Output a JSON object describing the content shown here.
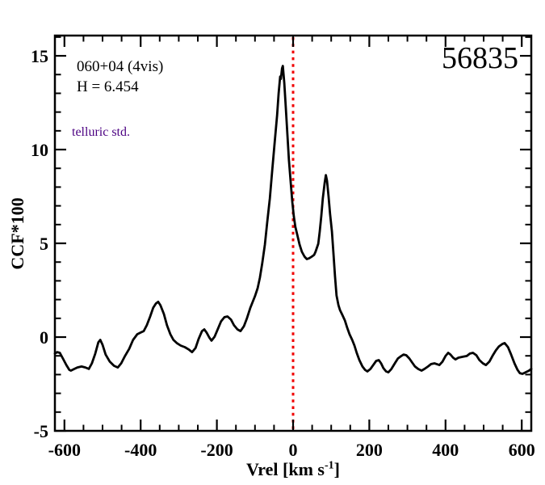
{
  "annotations": {
    "field": "060+04 (4vis)",
    "h_mag": "H = 6.454",
    "telluric": "telluric std.",
    "telluric_color": "#4b0082",
    "mjd": "56835"
  },
  "axes": {
    "xlabel_prefix": "Vrel [km s",
    "xlabel_sup": "-1",
    "xlabel_suffix": "]",
    "ylabel": "CCF*100"
  },
  "chart_data": {
    "type": "line",
    "title": "",
    "xlabel": "Vrel [km s^-1]",
    "ylabel": "CCF*100",
    "xlim": [
      -625,
      625
    ],
    "ylim": [
      -5,
      16.08
    ],
    "xticks_major": [
      -600,
      -400,
      -200,
      0,
      200,
      400,
      600
    ],
    "xtick_minor_step": 50,
    "yticks_major": [
      -5,
      0,
      5,
      10,
      15
    ],
    "ytick_minor_step": 1,
    "grid": false,
    "frame_color": "#000000",
    "line_color": "#000000",
    "vline": {
      "x": 0,
      "color": "#f00000",
      "style": "dotted"
    },
    "series": [
      {
        "name": "CCF",
        "points": [
          [
            -625,
            -0.88
          ],
          [
            -619,
            -0.8
          ],
          [
            -612,
            -0.84
          ],
          [
            -604,
            -1.14
          ],
          [
            -595,
            -1.49
          ],
          [
            -587,
            -1.75
          ],
          [
            -583,
            -1.79
          ],
          [
            -574,
            -1.7
          ],
          [
            -566,
            -1.62
          ],
          [
            -555,
            -1.57
          ],
          [
            -545,
            -1.62
          ],
          [
            -536,
            -1.7
          ],
          [
            -528,
            -1.4
          ],
          [
            -519,
            -0.88
          ],
          [
            -511,
            -0.28
          ],
          [
            -506,
            -0.15
          ],
          [
            -500,
            -0.41
          ],
          [
            -492,
            -0.93
          ],
          [
            -481,
            -1.31
          ],
          [
            -470,
            -1.53
          ],
          [
            -460,
            -1.62
          ],
          [
            -451,
            -1.4
          ],
          [
            -441,
            -1.01
          ],
          [
            -430,
            -0.63
          ],
          [
            -420,
            -0.15
          ],
          [
            -409,
            0.15
          ],
          [
            -400,
            0.24
          ],
          [
            -392,
            0.32
          ],
          [
            -384,
            0.63
          ],
          [
            -375,
            1.1
          ],
          [
            -367,
            1.57
          ],
          [
            -360,
            1.79
          ],
          [
            -354,
            1.88
          ],
          [
            -348,
            1.7
          ],
          [
            -339,
            1.23
          ],
          [
            -331,
            0.63
          ],
          [
            -322,
            0.15
          ],
          [
            -314,
            -0.15
          ],
          [
            -305,
            -0.32
          ],
          [
            -295,
            -0.45
          ],
          [
            -284,
            -0.54
          ],
          [
            -273,
            -0.67
          ],
          [
            -265,
            -0.8
          ],
          [
            -256,
            -0.58
          ],
          [
            -248,
            -0.11
          ],
          [
            -239,
            0.32
          ],
          [
            -233,
            0.41
          ],
          [
            -227,
            0.24
          ],
          [
            -220,
            -0.02
          ],
          [
            -214,
            -0.19
          ],
          [
            -206,
            0.02
          ],
          [
            -197,
            0.45
          ],
          [
            -189,
            0.84
          ],
          [
            -180,
            1.06
          ],
          [
            -172,
            1.1
          ],
          [
            -163,
            0.93
          ],
          [
            -155,
            0.63
          ],
          [
            -146,
            0.41
          ],
          [
            -138,
            0.32
          ],
          [
            -129,
            0.58
          ],
          [
            -121,
            1.01
          ],
          [
            -112,
            1.57
          ],
          [
            -106,
            1.88
          ],
          [
            -100,
            2.18
          ],
          [
            -93,
            2.61
          ],
          [
            -87,
            3.17
          ],
          [
            -81,
            3.94
          ],
          [
            -74,
            4.94
          ],
          [
            -68,
            6.1
          ],
          [
            -61,
            7.39
          ],
          [
            -55,
            8.81
          ],
          [
            -49,
            10.24
          ],
          [
            -42,
            11.83
          ],
          [
            -38,
            13.0
          ],
          [
            -34,
            13.9
          ],
          [
            -32,
            13.77
          ],
          [
            -29,
            14.33
          ],
          [
            -27,
            14.46
          ],
          [
            -23,
            13.56
          ],
          [
            -19,
            12.22
          ],
          [
            -15,
            10.84
          ],
          [
            -11,
            9.46
          ],
          [
            -6,
            8.17
          ],
          [
            -2,
            7.18
          ],
          [
            2,
            6.44
          ],
          [
            6,
            5.88
          ],
          [
            11,
            5.45
          ],
          [
            17,
            4.94
          ],
          [
            23,
            4.55
          ],
          [
            30,
            4.29
          ],
          [
            36,
            4.16
          ],
          [
            42,
            4.2
          ],
          [
            49,
            4.29
          ],
          [
            55,
            4.38
          ],
          [
            59,
            4.55
          ],
          [
            66,
            4.98
          ],
          [
            70,
            5.63
          ],
          [
            74,
            6.44
          ],
          [
            78,
            7.39
          ],
          [
            83,
            8.25
          ],
          [
            86,
            8.64
          ],
          [
            89,
            8.34
          ],
          [
            93,
            7.52
          ],
          [
            97,
            6.57
          ],
          [
            102,
            5.63
          ],
          [
            106,
            4.46
          ],
          [
            110,
            3.25
          ],
          [
            114,
            2.22
          ],
          [
            119,
            1.7
          ],
          [
            123,
            1.44
          ],
          [
            129,
            1.19
          ],
          [
            136,
            0.88
          ],
          [
            142,
            0.5
          ],
          [
            148,
            0.15
          ],
          [
            155,
            -0.15
          ],
          [
            161,
            -0.45
          ],
          [
            167,
            -0.84
          ],
          [
            174,
            -1.23
          ],
          [
            182,
            -1.57
          ],
          [
            189,
            -1.75
          ],
          [
            195,
            -1.83
          ],
          [
            203,
            -1.7
          ],
          [
            212,
            -1.44
          ],
          [
            218,
            -1.27
          ],
          [
            225,
            -1.23
          ],
          [
            231,
            -1.4
          ],
          [
            237,
            -1.66
          ],
          [
            244,
            -1.83
          ],
          [
            250,
            -1.88
          ],
          [
            258,
            -1.7
          ],
          [
            267,
            -1.4
          ],
          [
            275,
            -1.14
          ],
          [
            284,
            -1.01
          ],
          [
            290,
            -0.93
          ],
          [
            297,
            -0.97
          ],
          [
            305,
            -1.14
          ],
          [
            314,
            -1.4
          ],
          [
            320,
            -1.57
          ],
          [
            328,
            -1.7
          ],
          [
            337,
            -1.79
          ],
          [
            345,
            -1.7
          ],
          [
            354,
            -1.57
          ],
          [
            362,
            -1.44
          ],
          [
            371,
            -1.4
          ],
          [
            377,
            -1.44
          ],
          [
            384,
            -1.49
          ],
          [
            392,
            -1.31
          ],
          [
            400,
            -1.01
          ],
          [
            407,
            -0.84
          ],
          [
            413,
            -0.93
          ],
          [
            420,
            -1.1
          ],
          [
            426,
            -1.19
          ],
          [
            434,
            -1.1
          ],
          [
            445,
            -1.05
          ],
          [
            456,
            -1.01
          ],
          [
            464,
            -0.88
          ],
          [
            472,
            -0.84
          ],
          [
            481,
            -0.97
          ],
          [
            489,
            -1.23
          ],
          [
            498,
            -1.4
          ],
          [
            506,
            -1.49
          ],
          [
            515,
            -1.31
          ],
          [
            523,
            -1.01
          ],
          [
            532,
            -0.71
          ],
          [
            540,
            -0.5
          ],
          [
            549,
            -0.37
          ],
          [
            555,
            -0.32
          ],
          [
            564,
            -0.54
          ],
          [
            572,
            -0.93
          ],
          [
            581,
            -1.4
          ],
          [
            589,
            -1.75
          ],
          [
            595,
            -1.92
          ],
          [
            602,
            -1.96
          ],
          [
            610,
            -1.88
          ],
          [
            619,
            -1.79
          ],
          [
            625,
            -1.7
          ]
        ]
      }
    ]
  }
}
